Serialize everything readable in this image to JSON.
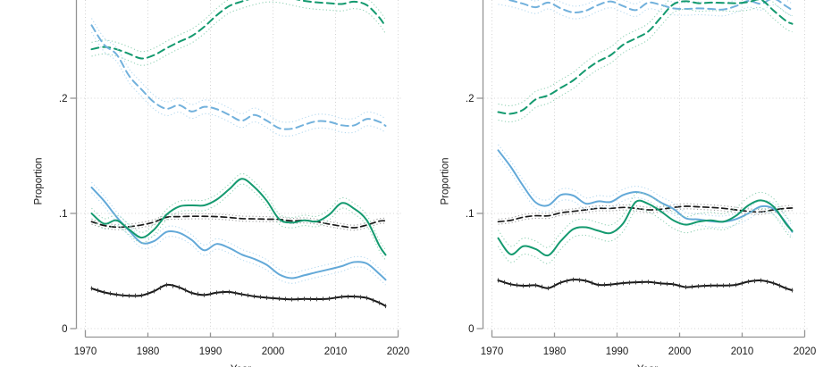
{
  "figure_title": "",
  "theme": {
    "background": "#ffffff",
    "axis_color": "#949494",
    "grid_color": "#d2d2d2",
    "text_color": "#1a1a1a",
    "green": "#149a6f",
    "green_ci": "#93d2b6",
    "blue": "#63a9d8",
    "blue_dashed": "#72b1dc",
    "blue_ci": "#b5d9ef",
    "black": "#1a1a1a",
    "black_ci": "#a0a0a0"
  },
  "chart_data": [
    {
      "type": "line",
      "panel": "left",
      "title": "",
      "xlabel": "Year",
      "ylabel": "Proportion",
      "x_ticks": [
        1970,
        1980,
        1990,
        2000,
        2010,
        2020
      ],
      "y_ticks": [
        {
          "value": 0,
          "label": "0"
        },
        {
          "value": 0.1,
          "label": ".1"
        },
        {
          "value": 0.2,
          "label": ".2"
        }
      ],
      "xlim": [
        1970,
        2020
      ],
      "ylim_visible": [
        0,
        0.285
      ],
      "grid": true,
      "legend": "none (cropped out of view)",
      "x": [
        1971,
        1973,
        1975,
        1977,
        1979,
        1981,
        1983,
        1985,
        1987,
        1989,
        1991,
        1993,
        1995,
        1997,
        1999,
        2001,
        2003,
        2005,
        2007,
        2009,
        2011,
        2013,
        2015,
        2017,
        2018
      ],
      "series": [
        {
          "name": "green-dashed",
          "color_key": "green",
          "ci_color_key": "green_ci",
          "line_style": "dashed",
          "ci_halfwidth": 0.006,
          "values": [
            0.2425,
            0.2445,
            0.2425,
            0.2385,
            0.2345,
            0.2375,
            0.2435,
            0.249,
            0.254,
            0.262,
            0.272,
            0.28,
            0.284,
            0.2872,
            0.2895,
            0.289,
            0.2868,
            0.2845,
            0.2832,
            0.2825,
            0.2818,
            0.2838,
            0.2808,
            0.27,
            0.262
          ]
        },
        {
          "name": "blue-dashed",
          "color_key": "blue_dashed",
          "ci_color_key": "blue_ci",
          "line_style": "dashed",
          "ci_halfwidth": 0.006,
          "values": [
            0.2633,
            0.2465,
            0.238,
            0.2194,
            0.2075,
            0.1965,
            0.1909,
            0.194,
            0.1885,
            0.1925,
            0.1905,
            0.1855,
            0.1805,
            0.1855,
            0.1805,
            0.174,
            0.1735,
            0.177,
            0.18,
            0.1795,
            0.1765,
            0.1765,
            0.182,
            0.1795,
            0.176
          ]
        },
        {
          "name": "black-dashed",
          "color_key": "black",
          "ci_color_key": "black_ci",
          "line_style": "dashed",
          "ci_halfwidth": 0.0022,
          "values": [
            0.0928,
            0.0895,
            0.0881,
            0.0885,
            0.09,
            0.0925,
            0.0967,
            0.0972,
            0.0975,
            0.0975,
            0.0972,
            0.0965,
            0.0955,
            0.0953,
            0.095,
            0.0948,
            0.0935,
            0.094,
            0.0928,
            0.0907,
            0.0889,
            0.0876,
            0.0899,
            0.0933,
            0.0936
          ]
        },
        {
          "name": "blue-solid",
          "color_key": "blue",
          "ci_color_key": "blue_ci",
          "line_style": "solid",
          "ci_halfwidth": 0.0045,
          "values": [
            0.1225,
            0.1108,
            0.0969,
            0.085,
            0.0745,
            0.076,
            0.084,
            0.0832,
            0.077,
            0.068,
            0.0735,
            0.07,
            0.0643,
            0.0605,
            0.0553,
            0.047,
            0.0438,
            0.0463,
            0.049,
            0.0515,
            0.0542,
            0.0578,
            0.0565,
            0.0475,
            0.0424
          ]
        },
        {
          "name": "green-solid",
          "color_key": "green",
          "ci_color_key": "green_ci",
          "line_style": "solid",
          "ci_halfwidth": 0.0045,
          "values": [
            0.1,
            0.091,
            0.094,
            0.086,
            0.079,
            0.086,
            0.099,
            0.106,
            0.107,
            0.107,
            0.112,
            0.121,
            0.13,
            0.123,
            0.111,
            0.095,
            0.092,
            0.094,
            0.093,
            0.099,
            0.109,
            0.104,
            0.094,
            0.072,
            0.064
          ]
        },
        {
          "name": "black-solid",
          "color_key": "black",
          "ci_color_key": "black_ci",
          "line_style": "solid-whiskered",
          "ci_halfwidth": 0.0015,
          "values": [
            0.0349,
            0.0315,
            0.0295,
            0.0285,
            0.0288,
            0.0325,
            0.038,
            0.0358,
            0.031,
            0.0292,
            0.0312,
            0.0318,
            0.0298,
            0.028,
            0.0268,
            0.026,
            0.0254,
            0.0258,
            0.0256,
            0.026,
            0.0276,
            0.0278,
            0.0266,
            0.0224,
            0.0196
          ]
        }
      ]
    },
    {
      "type": "line",
      "panel": "right",
      "title": "",
      "xlabel": "Year",
      "ylabel": "Proportion",
      "x_ticks": [
        1970,
        1980,
        1990,
        2000,
        2010,
        2020
      ],
      "y_ticks": [
        {
          "value": 0,
          "label": "0"
        },
        {
          "value": 0.1,
          "label": ".1"
        },
        {
          "value": 0.2,
          "label": ".2"
        }
      ],
      "xlim": [
        1970,
        2020
      ],
      "ylim_visible": [
        0,
        0.285
      ],
      "grid": true,
      "legend": "none (cropped out of view)",
      "x": [
        1971,
        1973,
        1975,
        1977,
        1979,
        1981,
        1983,
        1985,
        1987,
        1989,
        1991,
        1993,
        1995,
        1997,
        1999,
        2001,
        2003,
        2005,
        2007,
        2009,
        2011,
        2013,
        2015,
        2017,
        2018
      ],
      "series": [
        {
          "name": "blue-dashed",
          "color_key": "blue_dashed",
          "ci_color_key": "blue_ci",
          "line_style": "dashed",
          "ci_halfwidth": 0.0055,
          "values": [
            0.287,
            0.285,
            0.282,
            0.279,
            0.283,
            0.278,
            0.2745,
            0.276,
            0.281,
            0.284,
            0.28,
            0.2765,
            0.283,
            0.281,
            0.278,
            0.2775,
            0.278,
            0.2775,
            0.277,
            0.28,
            0.2845,
            0.282,
            0.2865,
            0.28,
            0.2765
          ]
        },
        {
          "name": "green-dashed",
          "color_key": "green",
          "ci_color_key": "green_ci",
          "line_style": "dashed",
          "ci_halfwidth": 0.007,
          "values": [
            0.188,
            0.1865,
            0.19,
            0.199,
            0.2025,
            0.209,
            0.2155,
            0.2245,
            0.232,
            0.2375,
            0.2465,
            0.252,
            0.258,
            0.27,
            0.2815,
            0.2842,
            0.2825,
            0.283,
            0.2828,
            0.2825,
            0.2835,
            0.2855,
            0.2762,
            0.2672,
            0.2646
          ]
        },
        {
          "name": "black-dashed",
          "color_key": "black",
          "ci_color_key": "black_ci",
          "line_style": "dashed",
          "ci_halfwidth": 0.0022,
          "values": [
            0.0928,
            0.094,
            0.0967,
            0.098,
            0.0979,
            0.1005,
            0.1018,
            0.1031,
            0.1044,
            0.1044,
            0.1052,
            0.1044,
            0.1031,
            0.1036,
            0.1052,
            0.1062,
            0.1057,
            0.1052,
            0.1044,
            0.1031,
            0.1018,
            0.1013,
            0.1031,
            0.1044,
            0.1047
          ]
        },
        {
          "name": "blue-solid",
          "color_key": "blue",
          "ci_color_key": "blue_ci",
          "line_style": "solid",
          "ci_halfwidth": 0.005,
          "values": [
            0.1548,
            0.1405,
            0.1238,
            0.1095,
            0.107,
            0.116,
            0.1155,
            0.1085,
            0.1105,
            0.11,
            0.116,
            0.1186,
            0.116,
            0.1095,
            0.104,
            0.0958,
            0.0948,
            0.0932,
            0.0928,
            0.095,
            0.1,
            0.106,
            0.104,
            0.092,
            0.084
          ]
        },
        {
          "name": "green-solid",
          "color_key": "green",
          "ci_color_key": "green_ci",
          "line_style": "solid",
          "ci_halfwidth": 0.007,
          "values": [
            0.0785,
            0.0645,
            0.0715,
            0.069,
            0.0636,
            0.076,
            0.0863,
            0.088,
            0.085,
            0.083,
            0.0915,
            0.11,
            0.1083,
            0.1018,
            0.094,
            0.0902,
            0.0928,
            0.094,
            0.0928,
            0.0979,
            0.107,
            0.1113,
            0.106,
            0.091,
            0.0848
          ]
        },
        {
          "name": "black-solid",
          "color_key": "black",
          "ci_color_key": "black_ci",
          "line_style": "solid-whiskered",
          "ci_halfwidth": 0.0015,
          "values": [
            0.0419,
            0.0385,
            0.0372,
            0.0376,
            0.0351,
            0.04,
            0.0425,
            0.0415,
            0.038,
            0.0383,
            0.0395,
            0.0402,
            0.0405,
            0.0392,
            0.0385,
            0.036,
            0.0368,
            0.0374,
            0.0374,
            0.038,
            0.0408,
            0.0418,
            0.0395,
            0.035,
            0.0333
          ]
        }
      ]
    }
  ]
}
